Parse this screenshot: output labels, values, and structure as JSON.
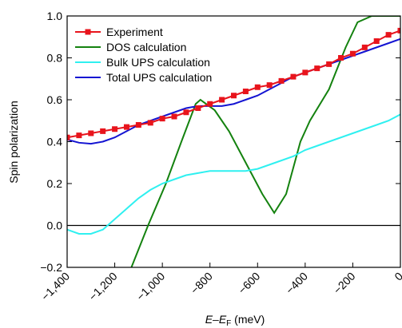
{
  "chart_data": {
    "type": "line",
    "x_label_parts": [
      "E",
      "–E",
      "F",
      " (meV)"
    ],
    "y_label": "Spin polarization",
    "x": [
      -1400,
      -1350,
      -1300,
      -1250,
      -1200,
      -1150,
      -1100,
      -1050,
      -1000,
      -950,
      -900,
      -850,
      -800,
      -750,
      -700,
      -650,
      -600,
      -550,
      -500,
      -450,
      -400,
      -350,
      -300,
      -250,
      -200,
      -150,
      -100,
      -50,
      0
    ],
    "series": [
      {
        "name": "Experiment",
        "color": "#e8141c",
        "marker": "square",
        "values": [
          0.42,
          0.43,
          0.44,
          0.45,
          0.46,
          0.47,
          0.48,
          0.49,
          0.51,
          0.52,
          0.54,
          0.56,
          0.58,
          0.6,
          0.62,
          0.64,
          0.66,
          0.67,
          0.69,
          0.71,
          0.73,
          0.75,
          0.77,
          0.8,
          0.82,
          0.85,
          0.88,
          0.91,
          0.93
        ]
      },
      {
        "name": "DOS calculation",
        "color": "#14820f",
        "x": [
          -1130,
          -1060,
          -985,
          -920,
          -860,
          -840,
          -780,
          -720,
          -650,
          -580,
          -530,
          -480,
          -420,
          -380,
          -300,
          -230,
          -180,
          -120,
          -60,
          0
        ],
        "values": [
          -0.2,
          0.0,
          0.2,
          0.4,
          0.58,
          0.6,
          0.55,
          0.45,
          0.3,
          0.15,
          0.06,
          0.15,
          0.4,
          0.5,
          0.65,
          0.85,
          0.97,
          1.0,
          1.0,
          1.0
        ]
      },
      {
        "name": "Bulk UPS calculation",
        "color": "#2ff0f0",
        "values": [
          -0.02,
          -0.04,
          -0.04,
          -0.02,
          0.03,
          0.08,
          0.13,
          0.17,
          0.2,
          0.22,
          0.24,
          0.25,
          0.26,
          0.26,
          0.26,
          0.26,
          0.27,
          0.29,
          0.31,
          0.33,
          0.36,
          0.38,
          0.4,
          0.42,
          0.44,
          0.46,
          0.48,
          0.5,
          0.53
        ]
      },
      {
        "name": "Total UPS calculation",
        "color": "#1414d2",
        "values": [
          0.41,
          0.395,
          0.39,
          0.4,
          0.42,
          0.45,
          0.48,
          0.5,
          0.52,
          0.54,
          0.56,
          0.57,
          0.57,
          0.57,
          0.58,
          0.6,
          0.62,
          0.65,
          0.68,
          0.71,
          0.73,
          0.75,
          0.77,
          0.79,
          0.81,
          0.83,
          0.85,
          0.87,
          0.89
        ]
      }
    ],
    "xlim": [
      -1400,
      0
    ],
    "ylim": [
      -0.2,
      1.0
    ],
    "xticks": [
      {
        "value": -1400,
        "label": "−1,400"
      },
      {
        "value": -1200,
        "label": "−1,200"
      },
      {
        "value": -1000,
        "label": "−1,000"
      },
      {
        "value": -800,
        "label": "−800"
      },
      {
        "value": -600,
        "label": "−600"
      },
      {
        "value": -400,
        "label": "−400"
      },
      {
        "value": -200,
        "label": "−200"
      },
      0
    ],
    "yticks": [
      {
        "value": -0.2,
        "label": "−0.2"
      },
      {
        "value": 0,
        "label": "0.0"
      },
      0.2,
      0.4,
      0.6,
      0.8,
      {
        "value": 1.0,
        "label": "1.0"
      }
    ],
    "hline": 0,
    "legend": "upper-left"
  }
}
